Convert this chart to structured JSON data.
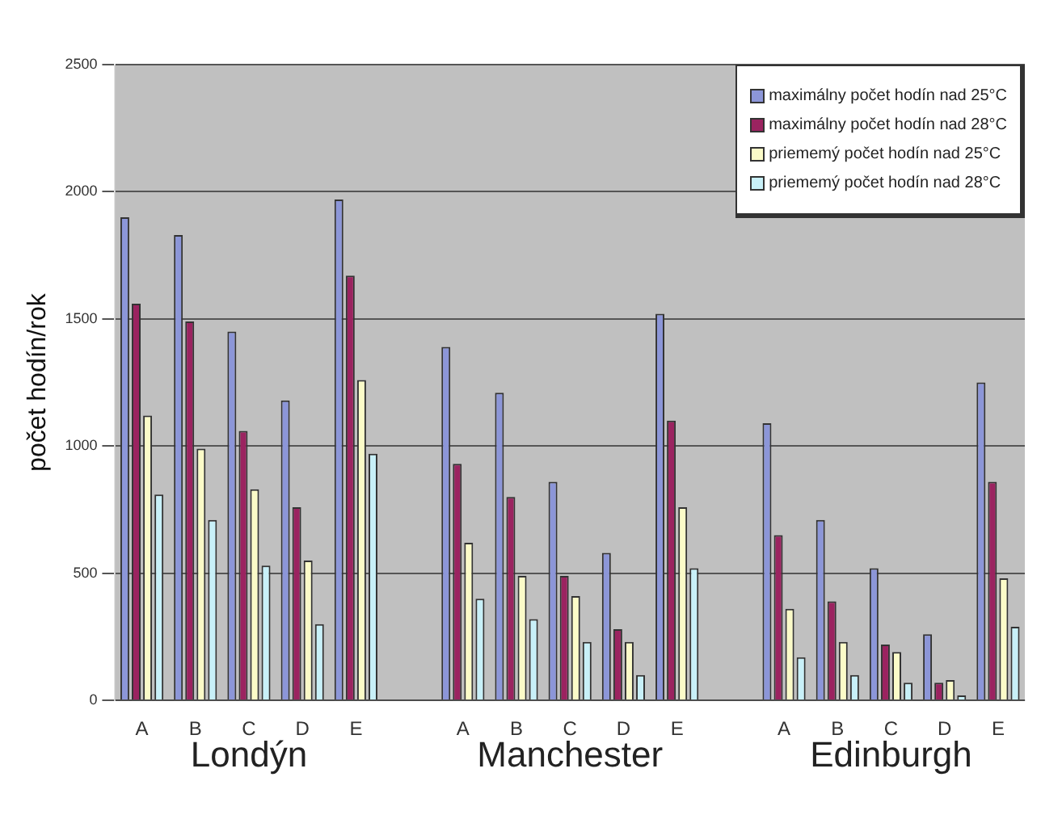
{
  "chart_data": {
    "type": "bar",
    "ylabel": "počet hodín/rok",
    "categories": [
      "A",
      "B",
      "C",
      "D",
      "E",
      null,
      "A",
      "B",
      "C",
      "D",
      "E",
      null,
      "A",
      "B",
      "C",
      "D",
      "E"
    ],
    "series": [
      {
        "name": "maximálny počet hodín nad 25°C",
        "color": "#8c96d8",
        "values": [
          1900,
          1830,
          1450,
          1180,
          1970,
          null,
          1390,
          1210,
          860,
          580,
          1520,
          null,
          1090,
          710,
          520,
          260,
          1250
        ]
      },
      {
        "name": "maximálny počet hodín nad 28°C",
        "color": "#9b2360",
        "values": [
          1560,
          1490,
          1060,
          760,
          1670,
          null,
          930,
          800,
          490,
          280,
          1100,
          null,
          650,
          390,
          220,
          70,
          860
        ]
      },
      {
        "name": "priememý počet hodín nad 25°C",
        "color": "#fbfbc8",
        "values": [
          1120,
          990,
          830,
          550,
          1260,
          null,
          620,
          490,
          410,
          230,
          760,
          null,
          360,
          230,
          190,
          80,
          480
        ]
      },
      {
        "name": "priememý počet hodín nad 28°C",
        "color": "#c8f0f8",
        "values": [
          810,
          710,
          530,
          300,
          970,
          null,
          400,
          320,
          230,
          100,
          520,
          null,
          170,
          100,
          70,
          20,
          290
        ]
      }
    ],
    "annotations": [
      "Londýn",
      "Manchester",
      "Edinburgh"
    ],
    "ylim": [
      0,
      2500
    ],
    "yticks": [
      0,
      500,
      1000,
      1500,
      2000,
      2500
    ],
    "grid": "y",
    "legend": "top right"
  }
}
